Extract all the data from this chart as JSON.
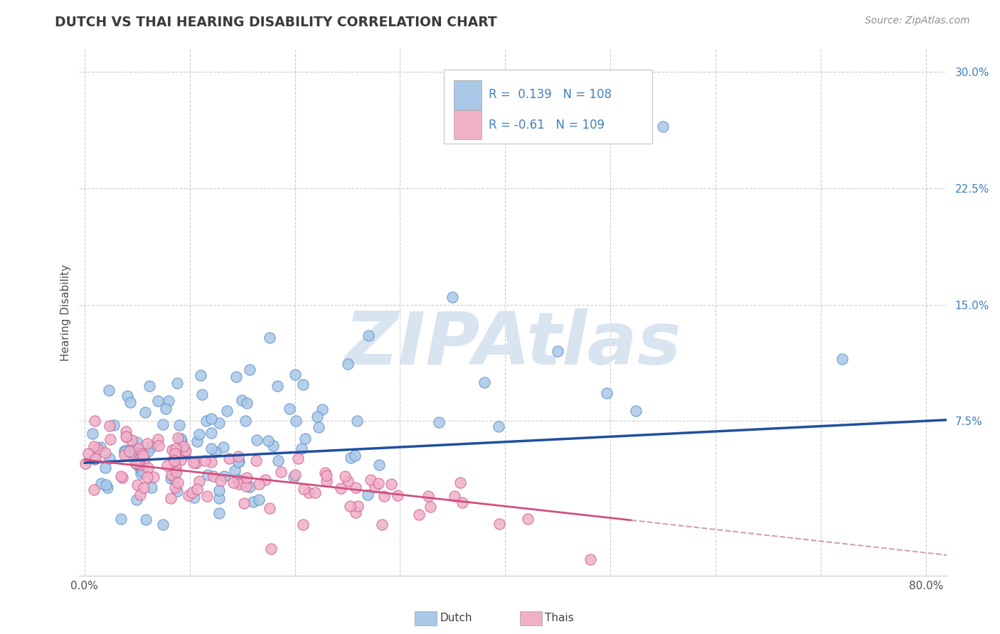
{
  "title": "DUTCH VS THAI HEARING DISABILITY CORRELATION CHART",
  "source": "Source: ZipAtlas.com",
  "ylabel": "Hearing Disability",
  "xlim": [
    -0.005,
    0.82
  ],
  "ylim": [
    -0.025,
    0.315
  ],
  "dutch_R": 0.139,
  "dutch_N": 108,
  "thai_R": -0.61,
  "thai_N": 109,
  "dutch_scatter_color": "#aac8e8",
  "dutch_edge_color": "#6090c8",
  "thai_scatter_color": "#f0b0c8",
  "thai_edge_color": "#d06090",
  "dutch_line_color": "#2050a0",
  "thai_line_solid_color": "#d05080",
  "thai_line_dash_color": "#d0a0b0",
  "watermark_color": "#d8e4f0",
  "background_color": "#ffffff",
  "grid_color": "#cccccc",
  "title_color": "#3a3a3a",
  "ytick_color": "#4080c0",
  "source_color": "#909090",
  "legend_color": "#4080c0",
  "seed": 42,
  "ytick_positions": [
    0.075,
    0.15,
    0.225,
    0.3
  ],
  "ytick_labels": [
    "7.5%",
    "15.0%",
    "22.5%",
    "30.0%"
  ],
  "xtick_positions": [
    0.0,
    0.1,
    0.2,
    0.3,
    0.4,
    0.5,
    0.6,
    0.7,
    0.8
  ],
  "xtick_labels": [
    "0.0%",
    "",
    "",
    "",
    "",
    "",
    "",
    "",
    "80.0%"
  ]
}
